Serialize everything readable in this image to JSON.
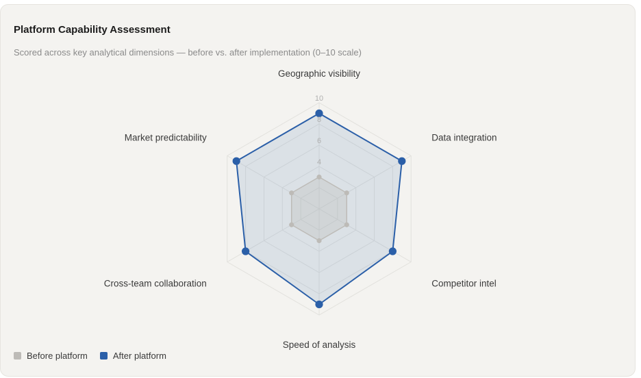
{
  "title": "Platform Capability Assessment",
  "subtitle": "Scored across key analytical dimensions — before vs. after implementation (0–10 scale)",
  "colors": {
    "before": "#bdbbb7",
    "after": "#2b5fa8",
    "after_fill": "#dbe2ec",
    "grid": "#e2e1dd"
  },
  "chart_data": {
    "type": "radar",
    "axes": [
      "Geographic visibility",
      "Data integration",
      "Competitor intel",
      "Speed of analysis",
      "Cross-team collaboration",
      "Market predictability"
    ],
    "ticks": [
      "4",
      "6",
      "8",
      "10"
    ],
    "range": [
      0,
      10
    ],
    "gridlines": true,
    "legend_position": "bottom-left",
    "series": [
      {
        "name": "Before platform",
        "values": [
          3,
          3,
          3,
          3,
          3,
          3
        ]
      },
      {
        "name": "After platform",
        "values": [
          9,
          9,
          8,
          9,
          8,
          9
        ]
      }
    ]
  }
}
